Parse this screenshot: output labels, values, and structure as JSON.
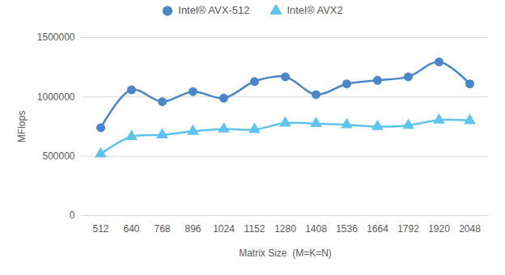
{
  "chart_data": {
    "type": "line",
    "categories": [
      "512",
      "640",
      "768",
      "896",
      "1024",
      "1152",
      "1280",
      "1408",
      "1536",
      "1664",
      "1792",
      "1920",
      "2048"
    ],
    "series": [
      {
        "name": "Intel® AVX-512",
        "color": "#4a86c8",
        "marker": "circle",
        "values": [
          740000,
          1060000,
          960000,
          1045000,
          990000,
          1130000,
          1170000,
          1020000,
          1110000,
          1140000,
          1170000,
          1295000,
          1110000
        ]
      },
      {
        "name": "Intel® AVX2",
        "color": "#5ec4ee",
        "marker": "triangle",
        "values": [
          520000,
          665000,
          680000,
          710000,
          730000,
          725000,
          780000,
          775000,
          765000,
          750000,
          760000,
          805000,
          800000
        ]
      }
    ],
    "x_label": "Matrix Size  (M=K=N)",
    "y_label": "MFlops",
    "ylim": [
      0,
      1500000
    ],
    "yticks": [
      0,
      500000,
      1000000,
      1500000
    ],
    "grid": true,
    "legend": "top"
  }
}
